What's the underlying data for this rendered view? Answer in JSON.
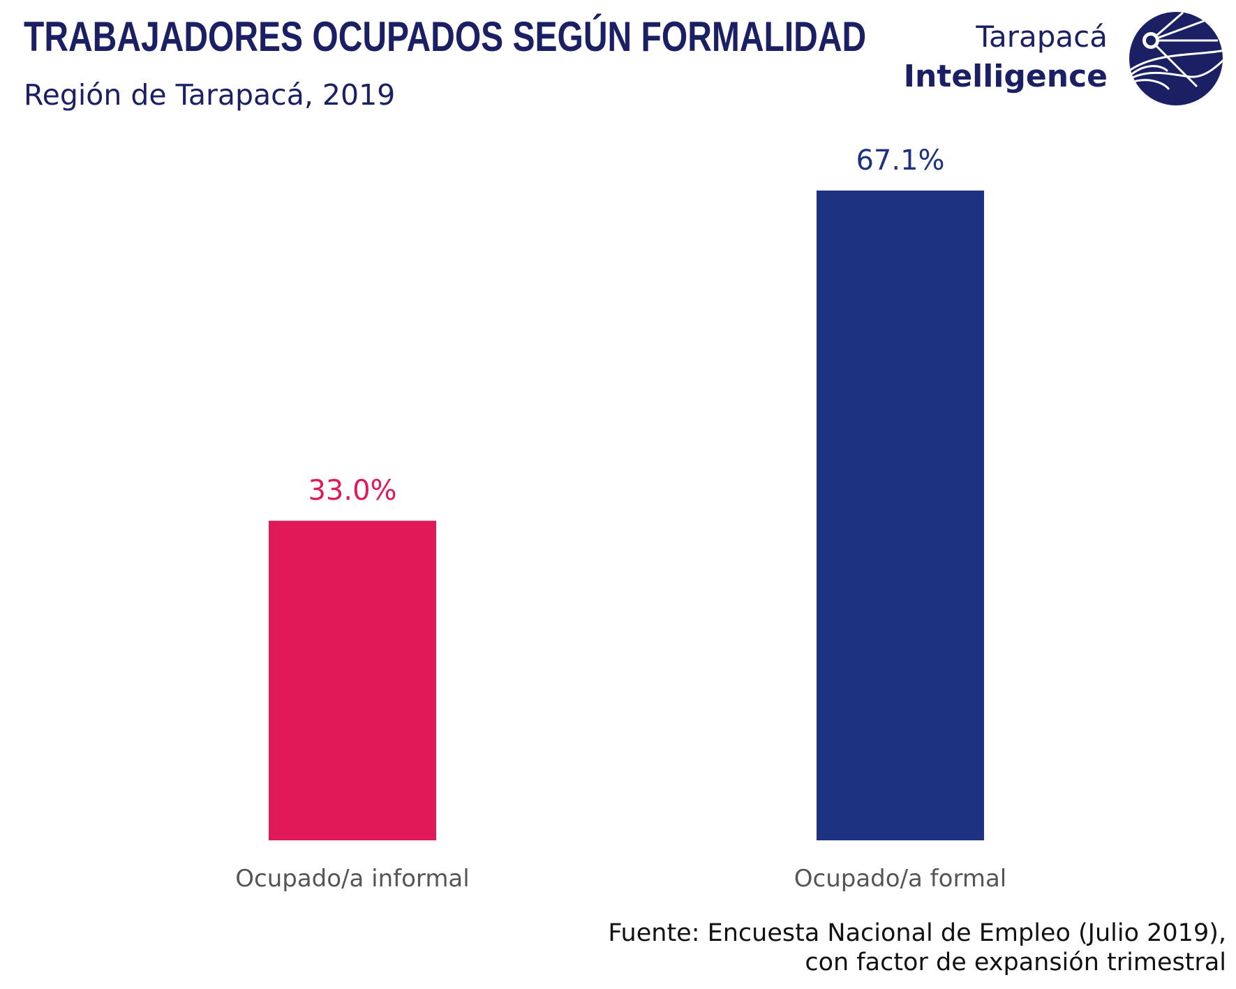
{
  "header": {
    "title": "TRABAJADORES OCUPADOS SEGÚN FORMALIDAD",
    "subtitle": "Región de Tarapacá, 2019"
  },
  "logo": {
    "line1": "Tarapacá",
    "line2": "Intelligence"
  },
  "source": {
    "line1": "Fuente: Encuesta Nacional de Empleo (Julio 2019),",
    "line2": "con factor de expansión trimestral"
  },
  "colors": {
    "informal": "#e01a59",
    "formal": "#1e3282",
    "brand": "#1b2064",
    "category_text": "#555555"
  },
  "chart_data": {
    "type": "bar",
    "title": "TRABAJADORES OCUPADOS SEGÚN FORMALIDAD",
    "subtitle": "Región de Tarapacá, 2019",
    "categories": [
      "Ocupado/a informal",
      "Ocupado/a formal"
    ],
    "values": [
      33.0,
      67.1
    ],
    "value_labels": [
      "33.0%",
      "67.1%"
    ],
    "unit": "%",
    "ylim": [
      0,
      67.1
    ],
    "grid": false,
    "legend": "none",
    "xlabel": "",
    "ylabel": ""
  }
}
